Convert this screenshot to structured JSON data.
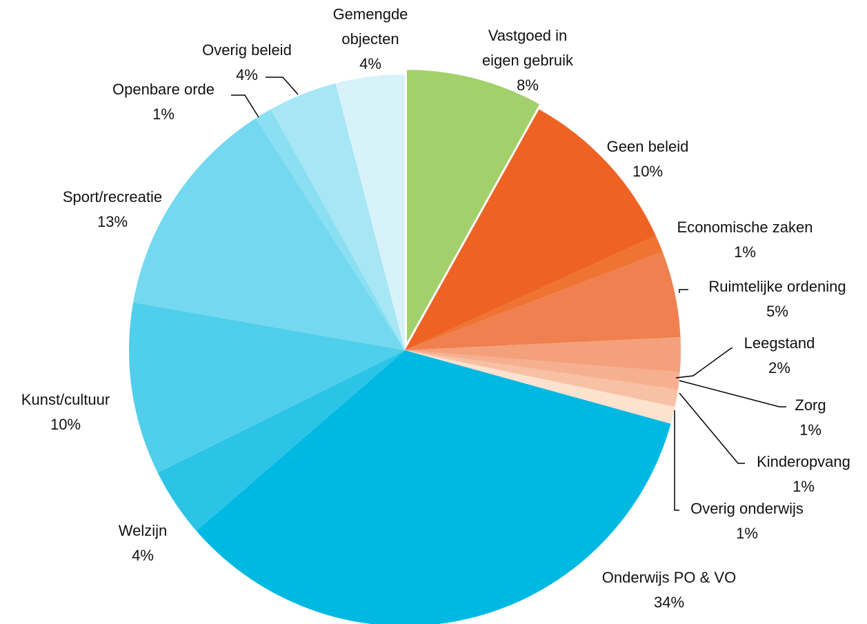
{
  "chart_data": {
    "type": "pie",
    "categories": [
      "Vastgoed in eigen gebruik",
      "Geen beleid",
      "Economische zaken",
      "Ruimtelijke ordening",
      "Leegstand",
      "Zorg",
      "Kinderopvang",
      "Overig onderwijs",
      "Onderwijs PO & VO",
      "Welzijn",
      "Kunst/cultuur",
      "Sport/recreatie",
      "Openbare orde",
      "Overig beleid",
      "Gemengde objecten"
    ],
    "values": [
      8,
      10,
      1,
      5,
      2,
      1,
      1,
      1,
      34,
      4,
      10,
      13,
      1,
      4,
      4
    ],
    "value_labels": [
      "8%",
      "10%",
      "1%",
      "5%",
      "2%",
      "1%",
      "1%",
      "1%",
      "34%",
      "4%",
      "10%",
      "13%",
      "1%",
      "4%",
      "4%"
    ],
    "colors": [
      "#a3d06a",
      "#ee6324",
      "#ef7433",
      "#f08050",
      "#f4a07a",
      "#f6b090",
      "#f8c0a4",
      "#fde2d0",
      "#00b9e2",
      "#2cc4e6",
      "#4fcfeb",
      "#74d9f0",
      "#8adff2",
      "#a6e6f5",
      "#d8f2f9"
    ]
  }
}
